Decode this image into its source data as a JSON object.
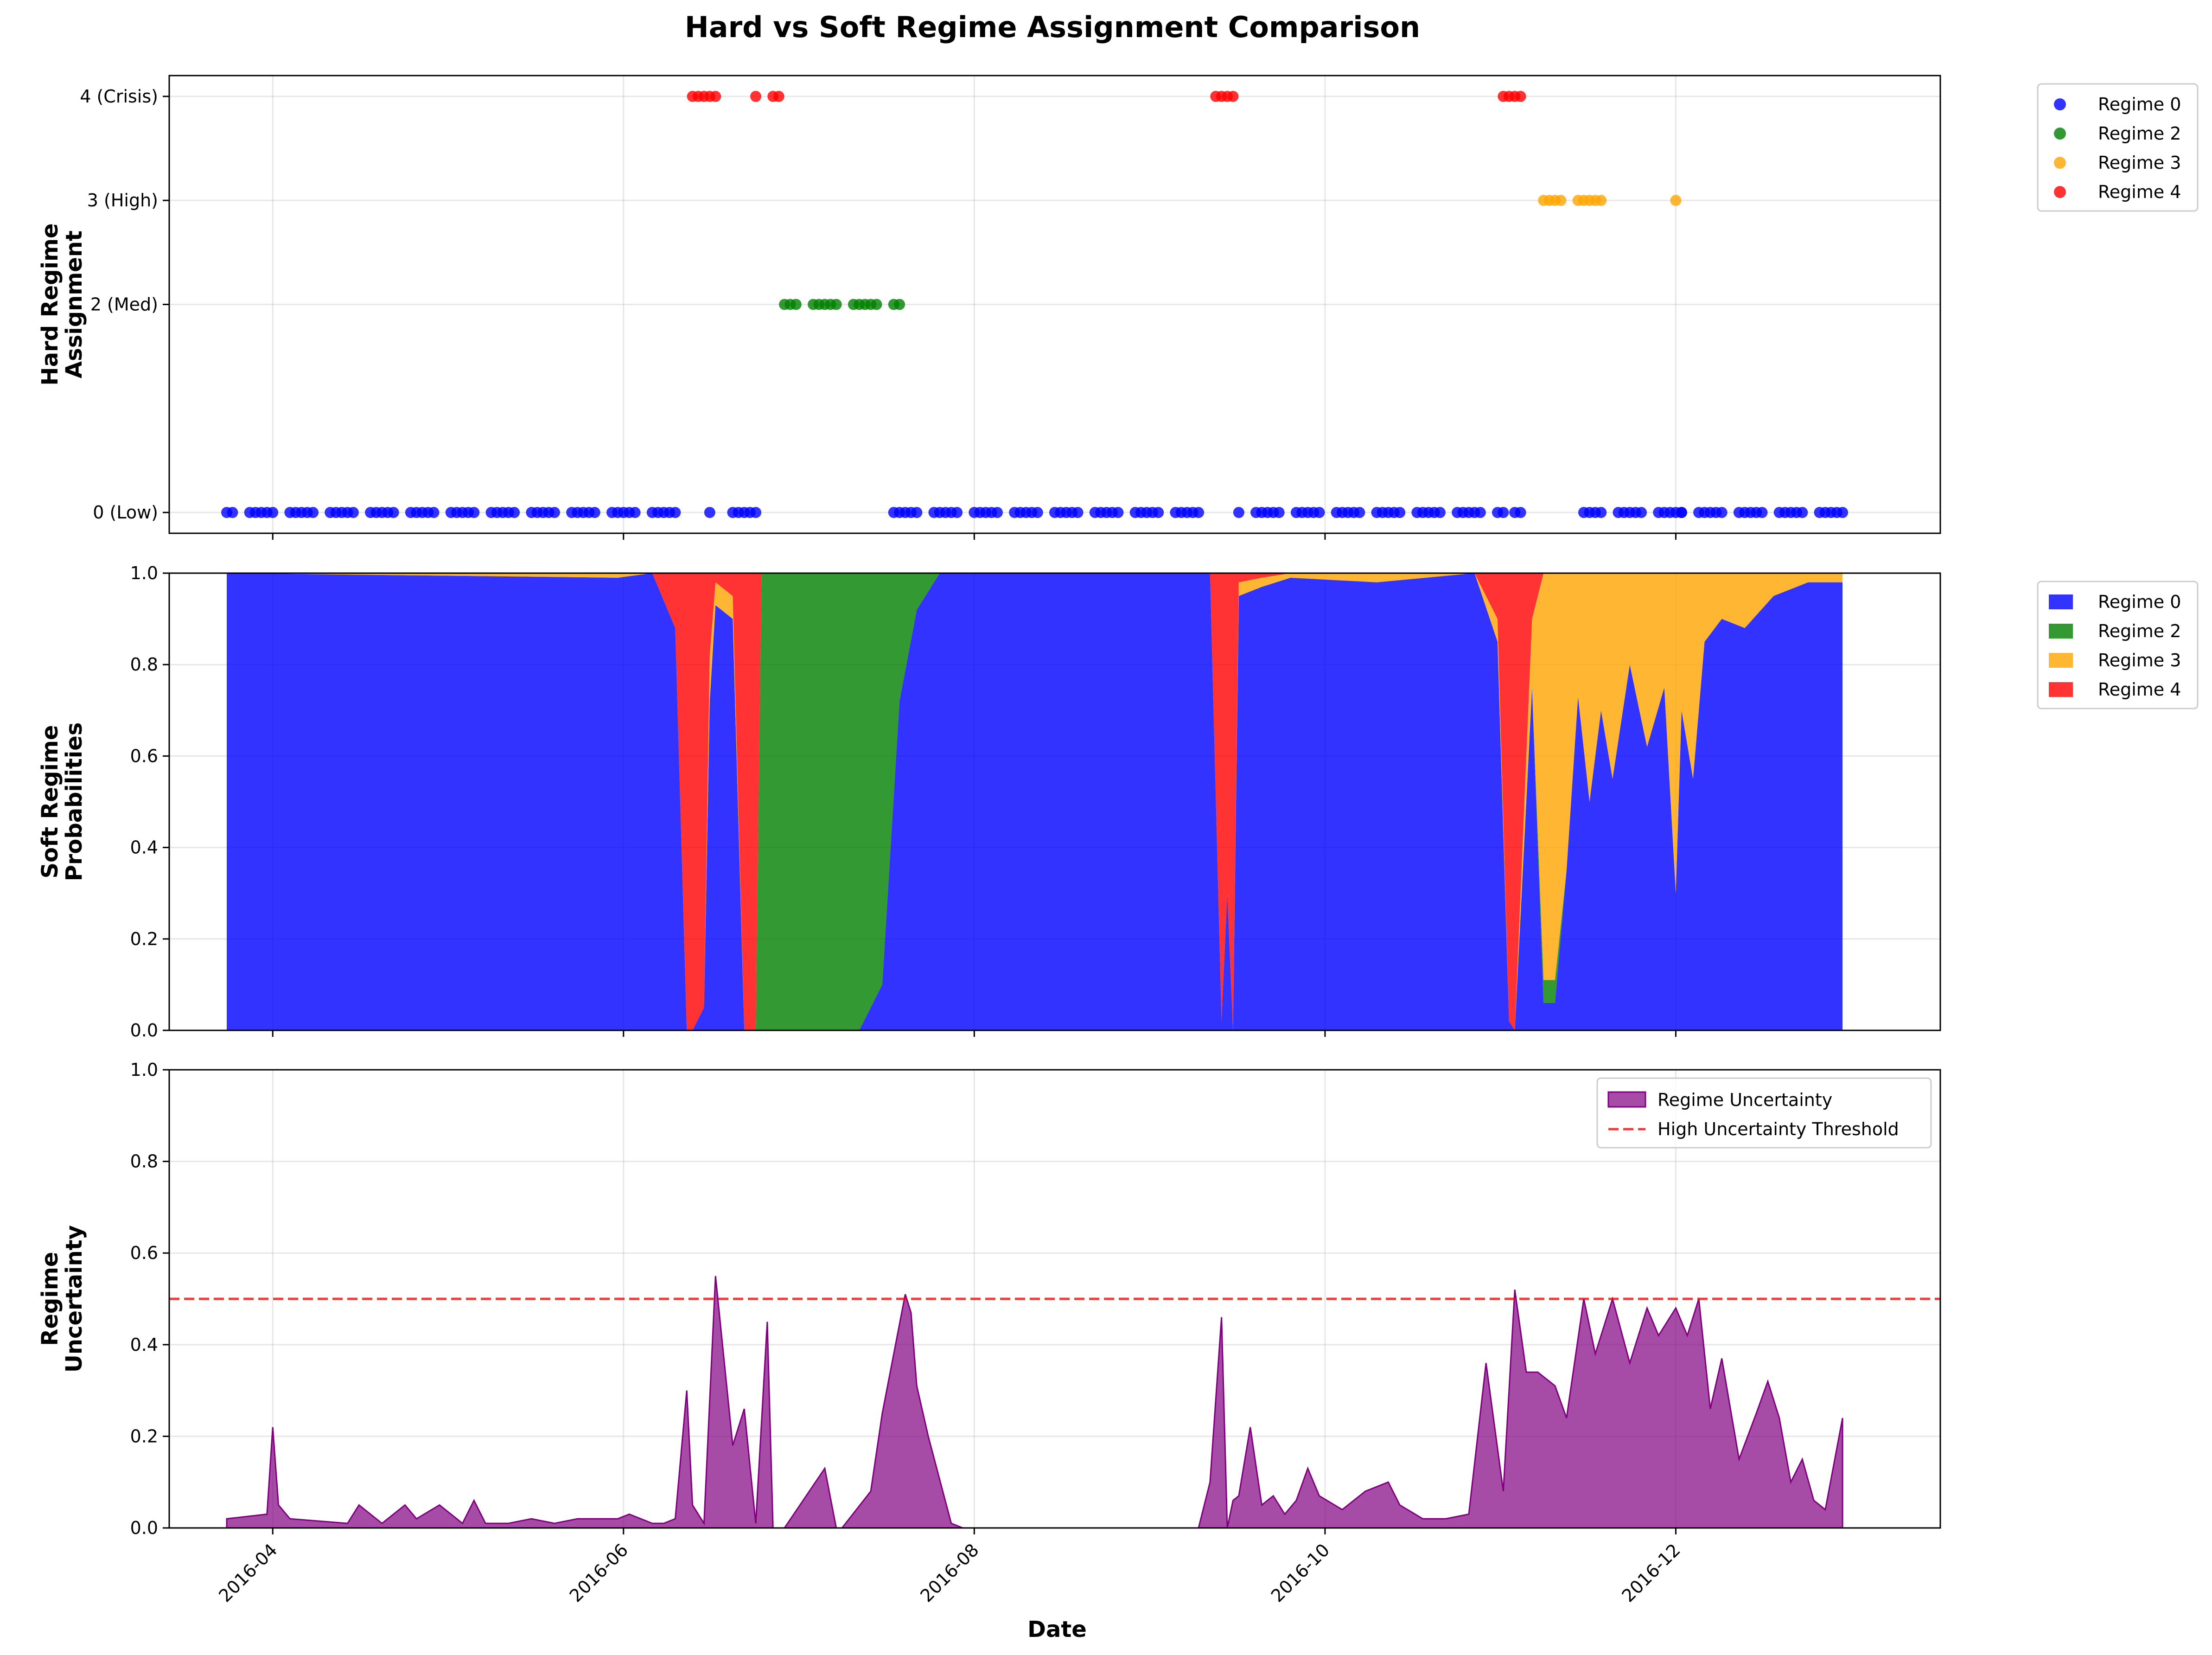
{
  "figure": {
    "title": "Hard vs Soft Regime Assignment Comparison",
    "xlabel": "Date",
    "x_ticks": [
      "2016-04",
      "2016-06",
      "2016-08",
      "2016-10",
      "2016-12"
    ]
  },
  "colors": {
    "regime_0": "#0000ff",
    "regime_2": "#008000",
    "regime_3": "#ffa500",
    "regime_4": "#ff0000",
    "uncertainty": "#800080",
    "threshold": "#ff0000"
  },
  "chart_data": [
    {
      "type": "scatter",
      "ylabel": "Hard Regime\nAssignment",
      "y_ticks": [
        "0 (Low)",
        "2 (Med)",
        "3 (High)",
        "4 (Crisis)"
      ],
      "y_tick_values": [
        0,
        2,
        3,
        4
      ],
      "ylim": [
        -0.2,
        4.2
      ],
      "grid": true,
      "legend_position": "outside top-right",
      "legend": [
        "Regime 0",
        "Regime 2",
        "Regime 3",
        "Regime 4"
      ],
      "series": [
        {
          "name": "Regime 0",
          "y": 0,
          "x_ranges": [
            [
              "2016-03-24",
              "2016-06-10"
            ],
            [
              "2016-06-16",
              "2016-06-16"
            ],
            [
              "2016-06-20",
              "2016-06-24"
            ],
            [
              "2016-07-18",
              "2016-09-09"
            ],
            [
              "2016-09-16",
              "2016-11-01"
            ],
            [
              "2016-11-03",
              "2016-11-04"
            ],
            [
              "2016-11-15",
              "2016-12-02"
            ],
            [
              "2016-12-02",
              "2016-12-30"
            ]
          ]
        },
        {
          "name": "Regime 2",
          "y": 2,
          "x_ranges": [
            [
              "2016-06-29",
              "2016-07-19"
            ]
          ]
        },
        {
          "name": "Regime 3",
          "y": 3,
          "x_ranges": [
            [
              "2016-11-08",
              "2016-11-18"
            ],
            [
              "2016-12-01",
              "2016-12-01"
            ]
          ]
        },
        {
          "name": "Regime 4",
          "y": 4,
          "x_ranges": [
            [
              "2016-06-13",
              "2016-06-17"
            ],
            [
              "2016-06-24",
              "2016-06-24"
            ],
            [
              "2016-06-27",
              "2016-06-28"
            ],
            [
              "2016-09-11",
              "2016-09-15"
            ],
            [
              "2016-11-01",
              "2016-11-04"
            ]
          ]
        }
      ]
    },
    {
      "type": "area",
      "stacked": true,
      "ylabel": "Soft Regime\nProbabilities",
      "ylim": [
        0,
        1
      ],
      "y_ticks": [
        "0.0",
        "0.2",
        "0.4",
        "0.6",
        "0.8",
        "1.0"
      ],
      "grid": true,
      "legend_position": "outside top-right",
      "legend": [
        "Regime 0",
        "Regime 2",
        "Regime 3",
        "Regime 4"
      ],
      "x": [
        "2016-03-24",
        "2016-05-31",
        "2016-06-06",
        "2016-06-10",
        "2016-06-12",
        "2016-06-13",
        "2016-06-15",
        "2016-06-16",
        "2016-06-17",
        "2016-06-20",
        "2016-06-22",
        "2016-06-24",
        "2016-06-25",
        "2016-06-27",
        "2016-06-28",
        "2016-07-12",
        "2016-07-16",
        "2016-07-19",
        "2016-07-22",
        "2016-07-26",
        "2016-09-11",
        "2016-09-13",
        "2016-09-14",
        "2016-09-15",
        "2016-09-16",
        "2016-09-20",
        "2016-09-25",
        "2016-10-10",
        "2016-10-27",
        "2016-10-31",
        "2016-11-02",
        "2016-11-03",
        "2016-11-06",
        "2016-11-08",
        "2016-11-10",
        "2016-11-12",
        "2016-11-14",
        "2016-11-16",
        "2016-11-18",
        "2016-11-20",
        "2016-11-23",
        "2016-11-26",
        "2016-11-29",
        "2016-12-01",
        "2016-12-02",
        "2016-12-04",
        "2016-12-06",
        "2016-12-09",
        "2016-12-13",
        "2016-12-18",
        "2016-12-24",
        "2016-12-30"
      ],
      "series": [
        {
          "name": "Regime 0",
          "values": [
            1.0,
            0.99,
            1.0,
            0.88,
            0.0,
            0.0,
            0.05,
            0.72,
            0.93,
            0.9,
            0.0,
            0.0,
            0.0,
            0.0,
            0.0,
            0.0,
            0.1,
            0.72,
            0.92,
            1.0,
            1.0,
            0.02,
            0.3,
            0.0,
            0.95,
            0.97,
            0.99,
            0.98,
            1.0,
            0.85,
            0.02,
            0.0,
            0.75,
            0.06,
            0.06,
            0.35,
            0.73,
            0.5,
            0.7,
            0.55,
            0.8,
            0.62,
            0.75,
            0.3,
            0.7,
            0.55,
            0.85,
            0.9,
            0.88,
            0.95,
            0.98,
            0.98
          ]
        },
        {
          "name": "Regime 2",
          "values": [
            0,
            0,
            0,
            0,
            0,
            0,
            0,
            0,
            0,
            0,
            0,
            0,
            1.0,
            1.0,
            1.0,
            1.0,
            0.9,
            0.28,
            0.08,
            0,
            0,
            0,
            0,
            0,
            0,
            0,
            0,
            0,
            0,
            0,
            0,
            0,
            0,
            0.05,
            0.05,
            0,
            0,
            0,
            0,
            0,
            0,
            0,
            0,
            0,
            0,
            0,
            0,
            0,
            0,
            0,
            0,
            0
          ]
        },
        {
          "name": "Regime 3",
          "values": [
            0,
            0.01,
            0,
            0,
            0,
            0,
            0,
            0.1,
            0.05,
            0.05,
            0,
            0,
            0,
            0,
            0,
            0,
            0,
            0,
            0,
            0,
            0,
            0,
            0,
            0,
            0.03,
            0.02,
            0.01,
            0.02,
            0,
            0.05,
            0,
            0,
            0.15,
            0.89,
            0.89,
            0.65,
            0.27,
            0.5,
            0.3,
            0.45,
            0.2,
            0.38,
            0.25,
            0.7,
            0.3,
            0.45,
            0.15,
            0.1,
            0.12,
            0.05,
            0.02,
            0.02
          ]
        },
        {
          "name": "Regime 4",
          "values": [
            0,
            0,
            0,
            0.12,
            1.0,
            1.0,
            0.95,
            0.18,
            0.02,
            0.05,
            1.0,
            1.0,
            0,
            0,
            0,
            0,
            0,
            0,
            0,
            0,
            0,
            0.98,
            0.7,
            1.0,
            0.02,
            0.01,
            0,
            0,
            0,
            0.1,
            0.98,
            1.0,
            0.1,
            0,
            0,
            0,
            0,
            0,
            0,
            0,
            0,
            0,
            0,
            0,
            0,
            0,
            0,
            0,
            0,
            0,
            0,
            0
          ]
        }
      ]
    },
    {
      "type": "area",
      "ylabel": "Regime\nUncertainty",
      "ylim": [
        0,
        1
      ],
      "y_ticks": [
        "0.0",
        "0.2",
        "0.4",
        "0.6",
        "0.8",
        "1.0"
      ],
      "grid": true,
      "legend_position": "upper right",
      "legend": [
        "Regime Uncertainty",
        "High Uncertainty Threshold"
      ],
      "threshold": 0.5,
      "x": [
        "2016-03-24",
        "2016-03-31",
        "2016-04-01",
        "2016-04-02",
        "2016-04-04",
        "2016-04-14",
        "2016-04-16",
        "2016-04-20",
        "2016-04-24",
        "2016-04-26",
        "2016-04-30",
        "2016-05-04",
        "2016-05-06",
        "2016-05-08",
        "2016-05-12",
        "2016-05-16",
        "2016-05-20",
        "2016-05-24",
        "2016-05-31",
        "2016-06-02",
        "2016-06-06",
        "2016-06-08",
        "2016-06-10",
        "2016-06-12",
        "2016-06-13",
        "2016-06-15",
        "2016-06-17",
        "2016-06-20",
        "2016-06-22",
        "2016-06-24",
        "2016-06-26",
        "2016-06-27",
        "2016-06-28",
        "2016-06-29",
        "2016-07-06",
        "2016-07-08",
        "2016-07-09",
        "2016-07-14",
        "2016-07-16",
        "2016-07-20",
        "2016-07-21",
        "2016-07-22",
        "2016-07-24",
        "2016-07-28",
        "2016-07-30",
        "2016-08-05",
        "2016-08-10",
        "2016-09-09",
        "2016-09-11",
        "2016-09-13",
        "2016-09-14",
        "2016-09-15",
        "2016-09-16",
        "2016-09-18",
        "2016-09-20",
        "2016-09-22",
        "2016-09-24",
        "2016-09-26",
        "2016-09-28",
        "2016-09-30",
        "2016-10-04",
        "2016-10-08",
        "2016-10-12",
        "2016-10-14",
        "2016-10-18",
        "2016-10-22",
        "2016-10-26",
        "2016-10-29",
        "2016-11-01",
        "2016-11-03",
        "2016-11-05",
        "2016-11-07",
        "2016-11-10",
        "2016-11-12",
        "2016-11-15",
        "2016-11-17",
        "2016-11-20",
        "2016-11-23",
        "2016-11-26",
        "2016-11-28",
        "2016-12-01",
        "2016-12-03",
        "2016-12-05",
        "2016-12-07",
        "2016-12-09",
        "2016-12-12",
        "2016-12-15",
        "2016-12-17",
        "2016-12-19",
        "2016-12-21",
        "2016-12-23",
        "2016-12-25",
        "2016-12-27",
        "2016-12-30"
      ],
      "values": [
        0.02,
        0.03,
        0.22,
        0.05,
        0.02,
        0.01,
        0.05,
        0.01,
        0.05,
        0.02,
        0.05,
        0.01,
        0.06,
        0.01,
        0.01,
        0.02,
        0.01,
        0.02,
        0.02,
        0.03,
        0.01,
        0.01,
        0.02,
        0.3,
        0.05,
        0.01,
        0.55,
        0.18,
        0.26,
        0.01,
        0.45,
        0.0,
        0.0,
        0.0,
        0.13,
        0.0,
        0.0,
        0.08,
        0.25,
        0.51,
        0.47,
        0.31,
        0.2,
        0.01,
        0.0,
        0.0,
        0.0,
        0.0,
        0.1,
        0.46,
        0.0,
        0.06,
        0.07,
        0.22,
        0.05,
        0.07,
        0.03,
        0.06,
        0.13,
        0.07,
        0.04,
        0.08,
        0.1,
        0.05,
        0.02,
        0.02,
        0.03,
        0.36,
        0.08,
        0.52,
        0.34,
        0.34,
        0.31,
        0.24,
        0.5,
        0.38,
        0.5,
        0.36,
        0.48,
        0.42,
        0.48,
        0.42,
        0.5,
        0.26,
        0.37,
        0.15,
        0.25,
        0.32,
        0.24,
        0.1,
        0.15,
        0.06,
        0.04,
        0.24
      ]
    }
  ]
}
